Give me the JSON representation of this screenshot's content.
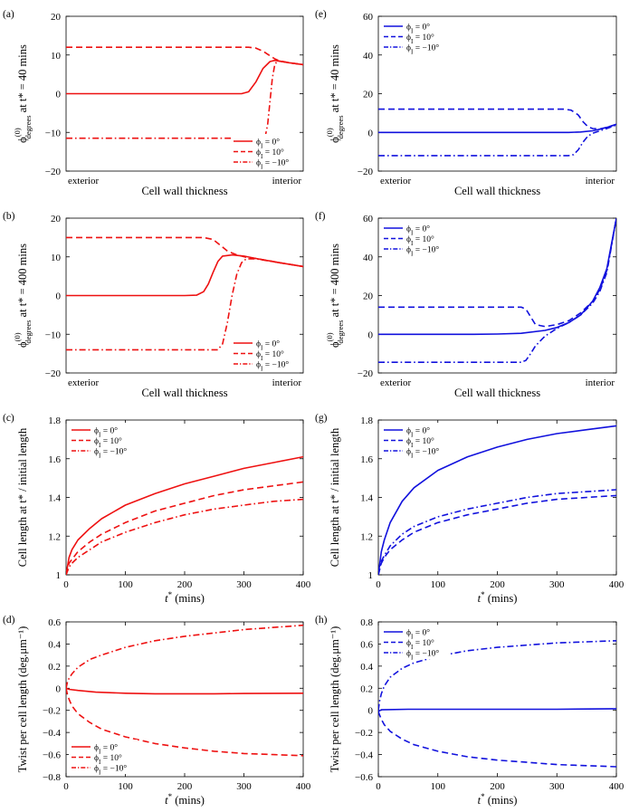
{
  "figure": {
    "colors": {
      "red": "#ee1111",
      "blue": "#1111dd"
    },
    "legend_entries": [
      "ϕ₁ = 0°",
      "ϕ₁ = 10°",
      "ϕ₁ = −10°"
    ],
    "legend_symbol": "ϕ",
    "legend_subscript": "I"
  },
  "chart_data": [
    {
      "id": "a",
      "panel_label": "(a)",
      "type": "line",
      "color": "red",
      "title": "",
      "xlabel": "Cell wall thickness",
      "ylabel_main": "ϕ",
      "ylabel_sup": "(0)",
      "ylabel_sub": "degrees",
      "ylabel_tail": " at t* = 40 mins",
      "x_tick_labels": [
        "exterior",
        "interior"
      ],
      "xlim": [
        0,
        1
      ],
      "ylim": [
        -20,
        20
      ],
      "yticks": [
        -20,
        -10,
        0,
        10,
        20
      ],
      "legend_position": "bottom-right",
      "series": [
        {
          "name": "ϕI = 0°",
          "dash": "solid",
          "x": [
            0,
            0.5,
            0.74,
            0.77,
            0.8,
            0.83,
            0.86,
            0.88,
            0.9,
            0.94,
            1.0
          ],
          "y": [
            0,
            0,
            0,
            0.5,
            3,
            6.5,
            8.3,
            8.6,
            8.4,
            8.0,
            7.5
          ]
        },
        {
          "name": "ϕI = 10°",
          "dash": "dashed",
          "x": [
            0,
            0.5,
            0.77,
            0.8,
            0.83,
            0.86,
            0.88,
            0.9,
            0.94,
            1.0
          ],
          "y": [
            12,
            12,
            12,
            11.8,
            11,
            9.8,
            9,
            8.5,
            8.0,
            7.5
          ]
        },
        {
          "name": "ϕI = −10°",
          "dash": "dashdot",
          "x": [
            0,
            0.5,
            0.82,
            0.84,
            0.85,
            0.86,
            0.87,
            0.88,
            0.89,
            0.9,
            0.94,
            1.0
          ],
          "y": [
            -11.5,
            -11.5,
            -11.5,
            -11,
            -8,
            -2,
            4,
            7.5,
            8.4,
            8.4,
            8.0,
            7.5
          ]
        }
      ]
    },
    {
      "id": "b",
      "panel_label": "(b)",
      "type": "line",
      "color": "red",
      "title": "",
      "xlabel": "Cell wall thickness",
      "ylabel_main": "ϕ",
      "ylabel_sup": "(0)",
      "ylabel_sub": "degrees",
      "ylabel_tail": " at t* = 400 mins",
      "x_tick_labels": [
        "exterior",
        "interior"
      ],
      "xlim": [
        0,
        1
      ],
      "ylim": [
        -20,
        20
      ],
      "yticks": [
        -20,
        -10,
        0,
        10,
        20
      ],
      "legend_position": "bottom-right",
      "series": [
        {
          "name": "ϕI = 0°",
          "dash": "solid",
          "x": [
            0,
            0.5,
            0.55,
            0.58,
            0.6,
            0.62,
            0.64,
            0.66,
            0.7,
            0.75,
            0.8,
            0.9,
            1.0
          ],
          "y": [
            0,
            0,
            0.1,
            1,
            3,
            6,
            8.8,
            10.2,
            10.5,
            10.2,
            9.6,
            8.5,
            7.5
          ]
        },
        {
          "name": "ϕI = 10°",
          "dash": "dashed",
          "x": [
            0,
            0.5,
            0.58,
            0.62,
            0.65,
            0.68,
            0.72,
            0.76,
            0.8,
            0.9,
            1.0
          ],
          "y": [
            15,
            15,
            15,
            14.5,
            13,
            11.5,
            10.5,
            9.9,
            9.6,
            8.5,
            7.5
          ]
        },
        {
          "name": "ϕI = −10°",
          "dash": "dashdot",
          "x": [
            0,
            0.5,
            0.64,
            0.66,
            0.68,
            0.7,
            0.72,
            0.74,
            0.76,
            0.8,
            0.9,
            1.0
          ],
          "y": [
            -14,
            -14,
            -14,
            -12.5,
            -7,
            0,
            5.5,
            8.5,
            9.5,
            9.5,
            8.5,
            7.5
          ]
        }
      ]
    },
    {
      "id": "c",
      "panel_label": "(c)",
      "type": "line",
      "color": "red",
      "title": "",
      "xlabel": "t* (mins)",
      "ylabel": "Cell length at t* / initial length",
      "xlim": [
        0,
        400
      ],
      "ylim": [
        1,
        1.8
      ],
      "xticks": [
        0,
        100,
        200,
        300,
        400
      ],
      "yticks": [
        1,
        1.2,
        1.4,
        1.6,
        1.8
      ],
      "legend_position": "top-left",
      "series": [
        {
          "name": "ϕI = 0°",
          "dash": "solid",
          "x": [
            0,
            5,
            10,
            20,
            40,
            60,
            100,
            150,
            200,
            250,
            300,
            350,
            400
          ],
          "y": [
            1.0,
            1.09,
            1.13,
            1.18,
            1.24,
            1.29,
            1.36,
            1.42,
            1.47,
            1.51,
            1.55,
            1.58,
            1.61
          ]
        },
        {
          "name": "ϕI = 10°",
          "dash": "dashed",
          "x": [
            0,
            5,
            10,
            20,
            40,
            60,
            100,
            150,
            200,
            250,
            300,
            350,
            400
          ],
          "y": [
            1.0,
            1.06,
            1.08,
            1.12,
            1.17,
            1.21,
            1.27,
            1.33,
            1.37,
            1.41,
            1.44,
            1.46,
            1.48
          ]
        },
        {
          "name": "ϕI = −10°",
          "dash": "dashdot",
          "x": [
            0,
            5,
            10,
            20,
            40,
            60,
            100,
            150,
            200,
            250,
            300,
            350,
            400
          ],
          "y": [
            1.0,
            1.04,
            1.06,
            1.09,
            1.13,
            1.17,
            1.22,
            1.27,
            1.31,
            1.34,
            1.36,
            1.38,
            1.39
          ]
        }
      ]
    },
    {
      "id": "d",
      "panel_label": "(d)",
      "type": "line",
      "color": "red",
      "title": "",
      "xlabel": "t* (mins)",
      "ylabel": "Twist per cell length (deg.μm⁻¹)",
      "xlim": [
        0,
        400
      ],
      "ylim": [
        -0.8,
        0.6
      ],
      "xticks": [
        0,
        100,
        200,
        300,
        400
      ],
      "yticks": [
        -0.8,
        -0.6,
        -0.4,
        -0.2,
        0,
        0.2,
        0.4,
        0.6
      ],
      "legend_position": "bottom-left",
      "series": [
        {
          "name": "ϕI = 0°",
          "dash": "solid",
          "x": [
            0,
            5,
            20,
            50,
            100,
            150,
            200,
            250,
            300,
            350,
            400
          ],
          "y": [
            0.0,
            -0.01,
            -0.02,
            -0.035,
            -0.045,
            -0.05,
            -0.05,
            -0.05,
            -0.048,
            -0.046,
            -0.045
          ]
        },
        {
          "name": "ϕI = 10°",
          "dash": "dashed",
          "x": [
            0,
            2,
            5,
            10,
            20,
            40,
            60,
            100,
            150,
            200,
            250,
            300,
            350,
            400
          ],
          "y": [
            0.0,
            -0.05,
            -0.1,
            -0.16,
            -0.23,
            -0.31,
            -0.37,
            -0.44,
            -0.5,
            -0.54,
            -0.57,
            -0.59,
            -0.6,
            -0.61
          ]
        },
        {
          "name": "ϕI = −10°",
          "dash": "dashdot",
          "x": [
            0,
            2,
            5,
            10,
            20,
            40,
            60,
            100,
            150,
            200,
            250,
            300,
            350,
            400
          ],
          "y": [
            0.0,
            0.05,
            0.09,
            0.13,
            0.19,
            0.26,
            0.3,
            0.37,
            0.43,
            0.47,
            0.5,
            0.53,
            0.55,
            0.57
          ]
        }
      ]
    },
    {
      "id": "e",
      "panel_label": "(e)",
      "type": "line",
      "color": "blue",
      "title": "",
      "xlabel": "Cell wall thickness",
      "ylabel_main": "ϕ",
      "ylabel_sup": "(0)",
      "ylabel_sub": "degrees",
      "ylabel_tail": " at t* = 40 mins",
      "x_tick_labels": [
        "exterior",
        "interior"
      ],
      "xlim": [
        0,
        1
      ],
      "ylim": [
        -20,
        60
      ],
      "yticks": [
        -20,
        0,
        20,
        40,
        60
      ],
      "legend_position": "top-left",
      "series": [
        {
          "name": "ϕI = 0°",
          "dash": "solid",
          "x": [
            0,
            0.5,
            0.8,
            0.85,
            0.9,
            0.93,
            0.96,
            1.0
          ],
          "y": [
            0,
            0,
            0,
            0.2,
            0.8,
            1.6,
            2.6,
            4.2
          ]
        },
        {
          "name": "ϕI = 10°",
          "dash": "dashed",
          "x": [
            0,
            0.5,
            0.78,
            0.81,
            0.84,
            0.86,
            0.88,
            0.9,
            0.93,
            0.96,
            1.0
          ],
          "y": [
            12,
            12,
            12,
            11.5,
            9,
            5.5,
            3,
            2,
            1.8,
            2.6,
            4.2
          ]
        },
        {
          "name": "ϕI = −10°",
          "dash": "dashdot",
          "x": [
            0,
            0.5,
            0.8,
            0.82,
            0.84,
            0.86,
            0.88,
            0.9,
            0.93,
            0.96,
            1.0
          ],
          "y": [
            -12,
            -12,
            -12,
            -11.5,
            -9,
            -5,
            -2,
            -0.5,
            0.8,
            2,
            3.8
          ]
        }
      ]
    },
    {
      "id": "f",
      "panel_label": "(f)",
      "type": "line",
      "color": "blue",
      "title": "",
      "xlabel": "Cell wall thickness",
      "ylabel_main": "ϕ",
      "ylabel_sup": "(0)",
      "ylabel_sub": "degrees",
      "ylabel_tail": " at t* = 400 mins",
      "x_tick_labels": [
        "exterior",
        "interior"
      ],
      "xlim": [
        0,
        1
      ],
      "ylim": [
        -20,
        60
      ],
      "yticks": [
        -20,
        0,
        20,
        40,
        60
      ],
      "legend_position": "top-left",
      "series": [
        {
          "name": "ϕI = 0°",
          "dash": "solid",
          "x": [
            0,
            0.4,
            0.5,
            0.6,
            0.7,
            0.75,
            0.8,
            0.85,
            0.9,
            0.93,
            0.96,
            1.0
          ],
          "y": [
            0,
            0,
            0.1,
            0.5,
            2,
            3.5,
            6,
            10,
            17,
            24,
            34,
            60
          ]
        },
        {
          "name": "ϕI = 10°",
          "dash": "dashed",
          "x": [
            0,
            0.5,
            0.6,
            0.62,
            0.64,
            0.66,
            0.7,
            0.75,
            0.8,
            0.85,
            0.9,
            0.93,
            0.96,
            1.0
          ],
          "y": [
            14,
            14,
            14,
            13,
            9,
            5,
            4,
            5,
            7,
            11,
            17,
            23,
            33,
            60
          ]
        },
        {
          "name": "ϕI = −10°",
          "dash": "dashdot",
          "x": [
            0,
            0.5,
            0.6,
            0.62,
            0.64,
            0.66,
            0.7,
            0.75,
            0.8,
            0.85,
            0.9,
            0.93,
            0.96,
            1.0
          ],
          "y": [
            -14.5,
            -14.5,
            -14.5,
            -13.5,
            -10,
            -6,
            -1,
            3,
            6,
            10,
            16,
            22,
            32,
            60
          ]
        }
      ]
    },
    {
      "id": "g",
      "panel_label": "(g)",
      "type": "line",
      "color": "blue",
      "title": "",
      "xlabel": "t* (mins)",
      "ylabel": "Cell length at t* / initial length",
      "xlim": [
        0,
        400
      ],
      "ylim": [
        1,
        1.8
      ],
      "xticks": [
        0,
        100,
        200,
        300,
        400
      ],
      "yticks": [
        1,
        1.2,
        1.4,
        1.6,
        1.8
      ],
      "legend_position": "top-left",
      "series": [
        {
          "name": "ϕI = 0°",
          "dash": "solid",
          "x": [
            0,
            5,
            10,
            20,
            40,
            60,
            100,
            150,
            200,
            250,
            300,
            350,
            400
          ],
          "y": [
            1.0,
            1.12,
            1.18,
            1.27,
            1.38,
            1.45,
            1.54,
            1.61,
            1.66,
            1.7,
            1.73,
            1.75,
            1.77
          ]
        },
        {
          "name": "ϕI = 10°",
          "dash": "dashed",
          "x": [
            0,
            5,
            10,
            20,
            40,
            60,
            100,
            150,
            200,
            250,
            300,
            350,
            400
          ],
          "y": [
            1.0,
            1.06,
            1.09,
            1.13,
            1.18,
            1.22,
            1.27,
            1.31,
            1.34,
            1.37,
            1.39,
            1.4,
            1.41
          ]
        },
        {
          "name": "ϕI = −10°",
          "dash": "dashdot",
          "x": [
            0,
            5,
            10,
            20,
            40,
            60,
            100,
            150,
            200,
            250,
            300,
            350,
            400
          ],
          "y": [
            1.0,
            1.07,
            1.1,
            1.15,
            1.21,
            1.25,
            1.3,
            1.34,
            1.37,
            1.4,
            1.42,
            1.43,
            1.44
          ]
        }
      ]
    },
    {
      "id": "h",
      "panel_label": "(h)",
      "type": "line",
      "color": "blue",
      "title": "",
      "xlabel": "t* (mins)",
      "ylabel": "Twist per cell length (deg.μm⁻¹)",
      "xlim": [
        0,
        400
      ],
      "ylim": [
        -0.6,
        0.8
      ],
      "xticks": [
        0,
        100,
        200,
        300,
        400
      ],
      "yticks": [
        -0.6,
        -0.4,
        -0.2,
        0,
        0.2,
        0.4,
        0.6,
        0.8
      ],
      "legend_position": "top-left",
      "series": [
        {
          "name": "ϕI = 0°",
          "dash": "solid",
          "x": [
            0,
            5,
            50,
            100,
            200,
            300,
            400
          ],
          "y": [
            -0.01,
            0.005,
            0.01,
            0.01,
            0.01,
            0.01,
            0.015
          ]
        },
        {
          "name": "ϕI = 10°",
          "dash": "dashed",
          "x": [
            0,
            2,
            5,
            10,
            20,
            40,
            60,
            100,
            150,
            200,
            250,
            300,
            350,
            400
          ],
          "y": [
            -0.01,
            -0.04,
            -0.08,
            -0.13,
            -0.19,
            -0.26,
            -0.31,
            -0.37,
            -0.42,
            -0.45,
            -0.47,
            -0.49,
            -0.5,
            -0.51
          ]
        },
        {
          "name": "ϕI = −10°",
          "dash": "dashdot",
          "x": [
            0,
            2,
            5,
            10,
            20,
            40,
            60,
            100,
            150,
            200,
            250,
            300,
            350,
            400
          ],
          "y": [
            0.0,
            0.08,
            0.15,
            0.22,
            0.3,
            0.38,
            0.43,
            0.49,
            0.54,
            0.57,
            0.59,
            0.61,
            0.62,
            0.63
          ]
        }
      ]
    }
  ]
}
